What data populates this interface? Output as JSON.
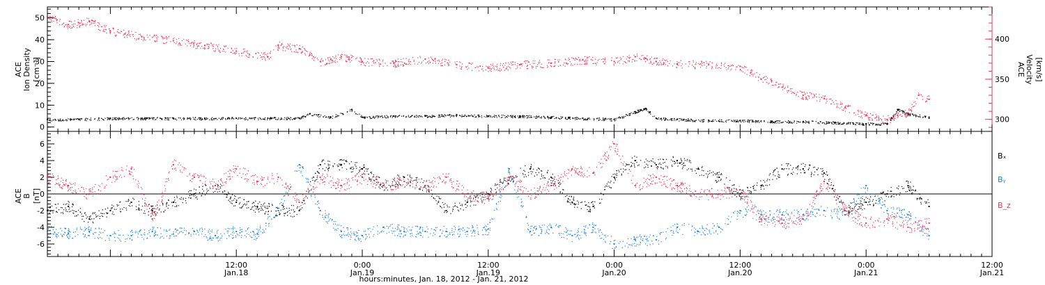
{
  "chart_data": [
    {
      "type": "scatter",
      "panel": "plasma",
      "ylabel_left": [
        "ACE",
        "Ion Density",
        "[cm⁻³]"
      ],
      "ylabel_right": [
        "ACE",
        "Velocity",
        "[km/s]"
      ],
      "ylim_left": [
        -2,
        55
      ],
      "yticks_left": [
        0,
        10,
        20,
        30,
        40,
        50
      ],
      "ylim_right": [
        285,
        440
      ],
      "yticks_right": [
        300,
        350,
        400
      ],
      "x_range_hours": [
        -6,
        78
      ],
      "series": [
        {
          "axis": "left",
          "color": "#000000",
          "x": [
            -6,
            -3,
            0,
            3,
            6,
            9,
            12,
            15,
            18,
            19,
            21,
            23,
            24,
            27,
            30,
            33,
            36,
            39,
            42,
            45,
            48,
            50,
            51,
            52,
            54,
            57,
            60,
            63,
            66,
            69,
            72,
            74,
            75,
            76,
            78
          ],
          "y": [
            3.5,
            3.5,
            4,
            4,
            4,
            4,
            4,
            4,
            4,
            6,
            4.5,
            8,
            4.5,
            5,
            5,
            5.5,
            5,
            5,
            4.5,
            4,
            3.5,
            7,
            8.5,
            4,
            3.5,
            3,
            3,
            2.5,
            2.5,
            2,
            1.5,
            1.5,
            8,
            6,
            4.5
          ]
        },
        {
          "axis": "right",
          "color": "#e8305a",
          "x": [
            -6,
            -4,
            -2,
            0,
            3,
            6,
            9,
            12,
            15,
            16,
            18,
            19,
            20,
            21,
            22,
            24,
            27,
            30,
            33,
            36,
            39,
            42,
            45,
            48,
            50,
            51,
            52,
            54,
            57,
            60,
            61,
            62,
            63,
            64,
            66,
            68,
            70,
            72,
            74,
            75,
            76,
            77,
            78
          ],
          "y": [
            428,
            418,
            422,
            410,
            403,
            398,
            392,
            385,
            378,
            392,
            388,
            380,
            372,
            375,
            378,
            372,
            370,
            375,
            368,
            364,
            368,
            370,
            374,
            372,
            378,
            376,
            372,
            369,
            368,
            366,
            358,
            350,
            348,
            340,
            330,
            326,
            315,
            305,
            300,
            305,
            308,
            330,
            325
          ]
        }
      ]
    },
    {
      "type": "scatter",
      "panel": "magnetic-field",
      "ylabel_left": [
        "ACE",
        "B",
        "[nT]"
      ],
      "ylim": [
        -7.5,
        7.5
      ],
      "yticks": [
        -6,
        -4,
        -2,
        0,
        2,
        4,
        6
      ],
      "zero_line": true,
      "x_range_hours": [
        -6,
        78
      ],
      "legend": [
        "Bₓ",
        "Bᵧ",
        "B_z"
      ],
      "legend_placement": "right",
      "series": [
        {
          "name": "Bx",
          "color": "#000000",
          "x": [
            -6,
            -4,
            -2,
            0,
            2,
            4,
            6,
            8,
            10,
            12,
            14,
            16,
            18,
            20,
            22,
            24,
            26,
            28,
            30,
            32,
            34,
            36,
            38,
            40,
            42,
            44,
            46,
            48,
            50,
            52,
            54,
            56,
            58,
            60,
            62,
            64,
            66,
            68,
            70,
            72,
            74,
            76,
            78
          ],
          "y": [
            -2,
            -1.5,
            -3,
            -2,
            -1,
            -2,
            -1,
            0,
            1,
            -1,
            -1.5,
            -2,
            -2,
            3.5,
            3.5,
            3,
            1,
            2,
            1,
            -2,
            -1,
            0,
            2,
            3,
            2,
            -1,
            -1.5,
            2,
            4,
            3.5,
            4,
            3,
            2,
            0,
            1,
            3,
            3,
            2.5,
            -2,
            -1,
            0,
            1,
            -1.5
          ]
        },
        {
          "name": "By",
          "color": "#1c7fd8",
          "x": [
            -6,
            -4,
            -2,
            0,
            2,
            4,
            6,
            8,
            10,
            12,
            14,
            16,
            18,
            20,
            22,
            24,
            26,
            28,
            30,
            32,
            34,
            36,
            38,
            40,
            42,
            44,
            46,
            48,
            50,
            52,
            54,
            56,
            58,
            60,
            62,
            64,
            66,
            68,
            70,
            72,
            74,
            76,
            78
          ],
          "y": [
            -4.5,
            -4.7,
            -4.5,
            -5,
            -5,
            -4.5,
            -4.8,
            -4.5,
            -5,
            -4.5,
            -4.8,
            -2,
            3.5,
            -2,
            -4.5,
            -5,
            -4,
            -4.5,
            -4.5,
            -4.5,
            -4.5,
            -4.2,
            3,
            -4.5,
            -4,
            -5,
            -4,
            -6,
            -5.5,
            -5.5,
            -4,
            -4.5,
            -4,
            -2,
            -2.5,
            -2.5,
            -2.5,
            -2,
            -2.5,
            1,
            -2,
            -2.5,
            -5
          ]
        },
        {
          "name": "Bz",
          "color": "#e8305a",
          "x": [
            -6,
            -4,
            -2,
            0,
            2,
            4,
            6,
            8,
            10,
            12,
            14,
            16,
            18,
            20,
            22,
            24,
            26,
            28,
            30,
            32,
            34,
            36,
            38,
            40,
            42,
            44,
            46,
            48,
            50,
            52,
            54,
            56,
            58,
            60,
            62,
            64,
            66,
            68,
            70,
            72,
            74,
            76,
            78
          ],
          "y": [
            2,
            1,
            0,
            2,
            3,
            -3,
            3.5,
            2,
            1,
            3,
            1.5,
            2,
            -1,
            2,
            1,
            2,
            1,
            1.5,
            1,
            2,
            0,
            -0.5,
            2,
            0,
            1,
            3,
            2.5,
            6,
            1,
            2,
            1,
            0,
            0,
            0.5,
            -3,
            -3.5,
            -3,
            1.5,
            -2,
            -3.5,
            -3,
            -4,
            -3.5
          ]
        }
      ]
    }
  ],
  "x_axis": {
    "ticks": [
      {
        "hour": 12,
        "time": "12:00",
        "date": "Jan.18"
      },
      {
        "hour": 24,
        "time": "0:00",
        "date": "Jan.19"
      },
      {
        "hour": 36,
        "time": "12:00",
        "date": "Jan.19"
      },
      {
        "hour": 48,
        "time": "0:00",
        "date": "Jan.20"
      },
      {
        "hour": 60,
        "time": "12:00",
        "date": "Jan.20"
      },
      {
        "hour": 72,
        "time": "0:00",
        "date": "Jan.21"
      },
      {
        "hour": 84,
        "time": "12:00",
        "date": "Jan.21"
      }
    ],
    "label": "hours:minutes, Jan. 18, 2012 - Jan. 21, 2012"
  },
  "labels": {
    "density_line1": "ACE",
    "density_line2": "Ion Density",
    "density_line3": "[cm⁻³]",
    "velocity_line1": "ACE",
    "velocity_line2": "Velocity",
    "velocity_line3": "[km/s]",
    "b_line1": "ACE",
    "b_line2": "B",
    "b_line3": "[nT]",
    "legend_bx": "Bₓ",
    "legend_by": "Bᵧ",
    "legend_bz": "B_z",
    "xlabel": "hours:minutes, Jan. 18, 2012 - Jan. 21, 2012"
  },
  "colors": {
    "black": "#000000",
    "pink": "#e8305a",
    "blue": "#1c7fd8"
  }
}
